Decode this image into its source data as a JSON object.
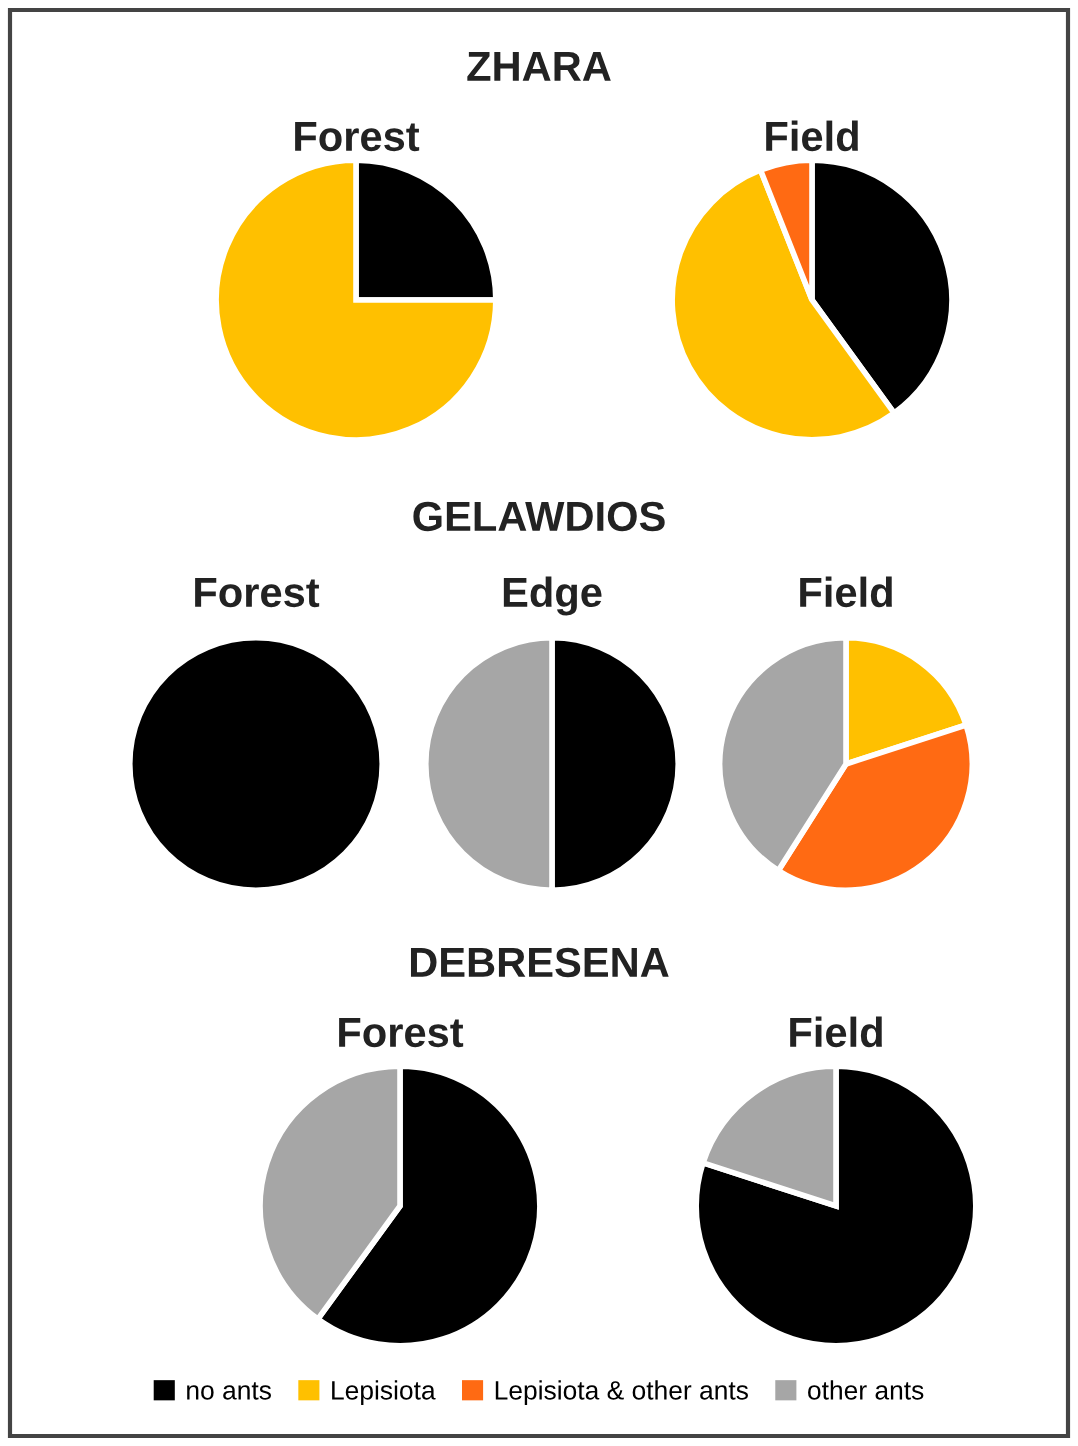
{
  "chart_data": [
    {
      "type": "pie",
      "subtitle": "ZHARA",
      "title": "Forest",
      "categories": [
        "no ants",
        "Lepisiota",
        "Lepisiota & other ants",
        "other ants"
      ],
      "values": [
        25,
        75,
        0,
        0
      ],
      "colors": [
        "#000000",
        "#ffc000",
        "#ff6a13",
        "#a6a6a6"
      ],
      "legend": "bottom"
    },
    {
      "type": "pie",
      "title": "Field",
      "categories": [
        null,
        null,
        null,
        null
      ],
      "values": [
        40,
        54,
        6,
        0
      ],
      "colors": [
        "#000000",
        "#ffc000",
        "#ff6a13",
        "#a6a6a6"
      ]
    },
    {
      "type": "pie",
      "title": "Forest",
      "categories": [
        null,
        null,
        null,
        null
      ],
      "values": [
        100,
        0,
        0,
        0
      ],
      "colors": [
        "#000000",
        "#ffc000",
        "#ff6a13",
        "#a6a6a6"
      ]
    },
    {
      "type": "pie",
      "subtitle": "GELAWDIOS",
      "title": "Edge",
      "categories": [
        null,
        null,
        null,
        null
      ],
      "values": [
        50,
        0,
        0,
        50
      ],
      "colors": [
        "#000000",
        "#ffc000",
        "#ff6a13",
        "#a6a6a6"
      ]
    },
    {
      "type": "pie",
      "title": "Field",
      "categories": [
        null,
        null,
        null,
        null
      ],
      "values": [
        0,
        20,
        39,
        41
      ],
      "colors": [
        "#000000",
        "#ffc000",
        "#ff6a13",
        "#a6a6a6"
      ]
    },
    {
      "type": "pie",
      "subtitle": "DEBRESENA",
      "title": "Forest",
      "categories": [
        null,
        null,
        null,
        null
      ],
      "values": [
        60,
        0,
        0,
        40
      ],
      "colors": [
        "#000000",
        "#ffc000",
        "#ff6a13",
        "#a6a6a6"
      ]
    },
    {
      "type": "pie",
      "title": "Field",
      "categories": [
        null,
        null,
        null,
        null
      ],
      "values": [
        80,
        0,
        0,
        20
      ],
      "colors": [
        "#000000",
        "#ffc000",
        "#ff6a13",
        "#a6a6a6"
      ]
    }
  ]
}
